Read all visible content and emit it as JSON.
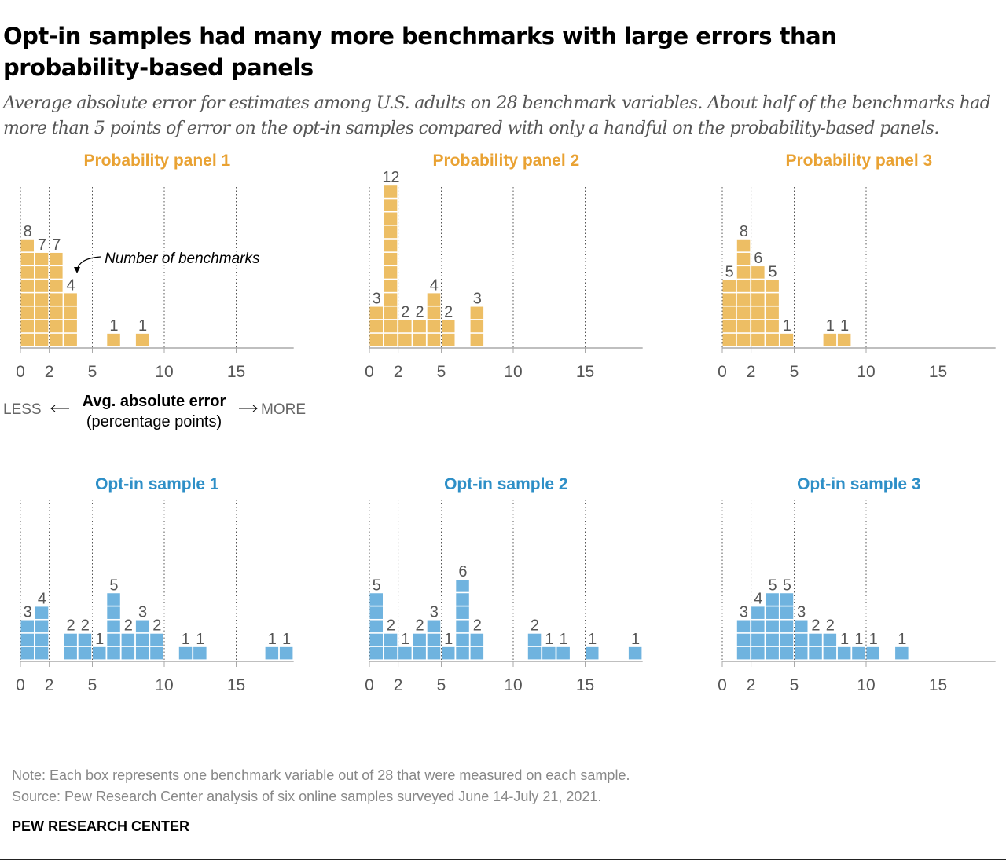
{
  "title": "Opt-in samples had many more benchmarks with large errors than probability-based panels",
  "subtitle": "Average absolute error for estimates among U.S. adults on 28 benchmark variables. About half of the benchmarks had more than 5 points of error on the opt-in samples compared with only a handful on the probability-based panels.",
  "annotation": "Number of benchmarks",
  "axis": {
    "title": "Avg. absolute error",
    "subtitle": "(percentage points)",
    "less": "LESS",
    "more": "MORE"
  },
  "note": "Note: Each box represents one benchmark variable out of 28 that were measured on each sample.",
  "source": "Source: Pew Research Center analysis of six online samples surveyed June 14-July 21, 2021.",
  "brand": "PEW RESEARCH CENTER",
  "colors": {
    "probability": "#EDBE64",
    "probability_title": "#E9A233",
    "optin": "#6FB3DF",
    "optin_title": "#2E8FC7"
  },
  "chart_data": [
    {
      "type": "bar",
      "title": "Probability panel 1",
      "group": "probability",
      "xlim": [
        0,
        19
      ],
      "xticks": [
        0,
        2,
        5,
        10,
        15
      ],
      "bins": [
        0,
        1,
        2,
        3,
        6,
        8
      ],
      "values": [
        8,
        7,
        7,
        4,
        1,
        1
      ]
    },
    {
      "type": "bar",
      "title": "Probability panel 2",
      "group": "probability",
      "xlim": [
        0,
        19
      ],
      "xticks": [
        0,
        2,
        5,
        10,
        15
      ],
      "bins": [
        0,
        1,
        2,
        3,
        4,
        5,
        7
      ],
      "values": [
        3,
        12,
        2,
        2,
        4,
        2,
        3
      ]
    },
    {
      "type": "bar",
      "title": "Probability panel 3",
      "group": "probability",
      "xlim": [
        0,
        19
      ],
      "xticks": [
        0,
        2,
        5,
        10,
        15
      ],
      "bins": [
        0,
        1,
        2,
        3,
        4,
        7,
        8
      ],
      "values": [
        5,
        8,
        6,
        5,
        1,
        1,
        1
      ]
    },
    {
      "type": "bar",
      "title": "Opt-in sample 1",
      "group": "optin",
      "xlim": [
        0,
        19
      ],
      "xticks": [
        0,
        2,
        5,
        10,
        15
      ],
      "bins": [
        0,
        1,
        3,
        4,
        5,
        6,
        7,
        8,
        9,
        11,
        12,
        17,
        18
      ],
      "values": [
        3,
        4,
        2,
        2,
        1,
        5,
        2,
        3,
        2,
        1,
        1,
        1,
        1
      ]
    },
    {
      "type": "bar",
      "title": "Opt-in sample 2",
      "group": "optin",
      "xlim": [
        0,
        19
      ],
      "xticks": [
        0,
        2,
        5,
        10,
        15
      ],
      "bins": [
        0,
        1,
        2,
        3,
        4,
        5,
        6,
        7,
        11,
        12,
        13,
        15,
        18
      ],
      "values": [
        5,
        2,
        1,
        2,
        3,
        1,
        6,
        2,
        2,
        1,
        1,
        1,
        1
      ]
    },
    {
      "type": "bar",
      "title": "Opt-in sample 3",
      "group": "optin",
      "xlim": [
        0,
        19
      ],
      "xticks": [
        0,
        2,
        5,
        10,
        15
      ],
      "bins": [
        1,
        2,
        3,
        4,
        5,
        6,
        7,
        8,
        9,
        10,
        12
      ],
      "values": [
        3,
        4,
        5,
        5,
        3,
        2,
        2,
        1,
        1,
        1,
        1
      ]
    }
  ]
}
